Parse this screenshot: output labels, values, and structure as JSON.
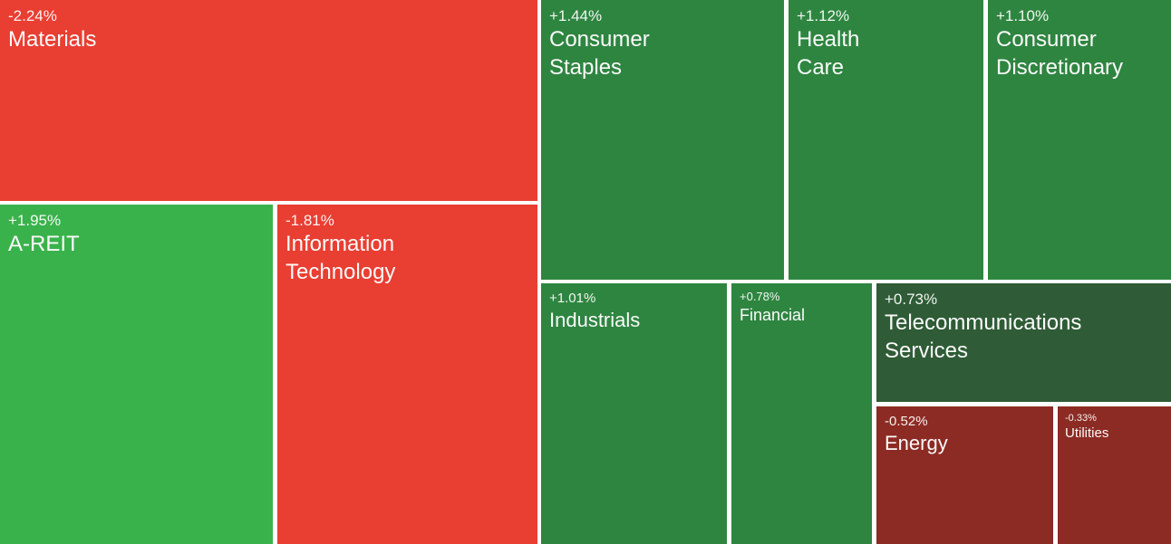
{
  "chart_data": {
    "type": "heatmap",
    "subtype": "treemap",
    "title": "",
    "unit": "%",
    "legend": "off",
    "series": [
      {
        "name": "Materials",
        "change_pct": -2.24
      },
      {
        "name": "A-REIT",
        "change_pct": 1.95
      },
      {
        "name": "Information Technology",
        "change_pct": -1.81
      },
      {
        "name": "Consumer Staples",
        "change_pct": 1.44
      },
      {
        "name": "Health Care",
        "change_pct": 1.12
      },
      {
        "name": "Consumer Discretionary",
        "change_pct": 1.1
      },
      {
        "name": "Industrials",
        "change_pct": 1.01
      },
      {
        "name": "Financial",
        "change_pct": 0.78
      },
      {
        "name": "Telecommunications Services",
        "change_pct": 0.73
      },
      {
        "name": "Energy",
        "change_pct": -0.52
      },
      {
        "name": "Utilities",
        "change_pct": -0.33
      }
    ]
  },
  "palette": {
    "strong_red": "#e93e32",
    "bright_green": "#3ab24b",
    "mid_green": "#2e8540",
    "dark_green": "#2f5c36",
    "dark_red": "#8c2b24",
    "text": "#ffffff",
    "gap_background": "#ffffff"
  },
  "tiles": {
    "materials": {
      "change": "-2.24%",
      "name": "Materials"
    },
    "areit": {
      "change": "+1.95%",
      "name": "A-REIT"
    },
    "it": {
      "change": "-1.81%",
      "name": "Information\nTechnology"
    },
    "staples": {
      "change": "+1.44%",
      "name": "Consumer\nStaples"
    },
    "health": {
      "change": "+1.12%",
      "name": "Health\nCare"
    },
    "discretionary": {
      "change": "+1.10%",
      "name": "Consumer\nDiscretionary"
    },
    "industrials": {
      "change": "+1.01%",
      "name": "Industrials"
    },
    "financial": {
      "change": "+0.78%",
      "name": "Financial"
    },
    "telecom": {
      "change": "+0.73%",
      "name": "Telecommunications\nServices"
    },
    "energy": {
      "change": "-0.52%",
      "name": "Energy"
    },
    "utilities": {
      "change": "-0.33%",
      "name": "Utilities"
    }
  }
}
